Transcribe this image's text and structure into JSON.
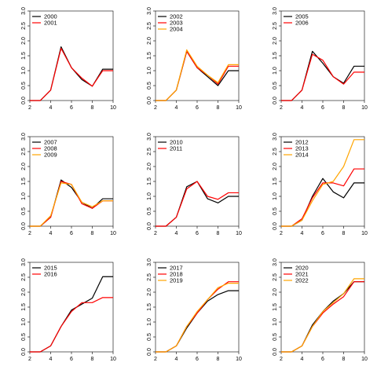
{
  "chart_data": [
    {
      "type": "line",
      "x": [
        2,
        3,
        4,
        5,
        6,
        7,
        8,
        9,
        10
      ],
      "xlim": [
        2,
        10
      ],
      "ylim": [
        0,
        3
      ],
      "xticks": [
        2,
        4,
        6,
        8,
        10
      ],
      "yticks": [
        "0.0",
        "0.5",
        "1.0",
        "1.5",
        "2.0",
        "2.5",
        "3.0"
      ],
      "series": [
        {
          "name": "2000",
          "color": "#000000",
          "values": [
            0,
            0,
            0.35,
            1.8,
            1.1,
            0.7,
            0.48,
            1.05,
            1.05
          ]
        },
        {
          "name": "2001",
          "color": "#ff0000",
          "values": [
            0,
            0,
            0.35,
            1.75,
            1.1,
            0.75,
            0.48,
            1.0,
            1.0
          ]
        }
      ]
    },
    {
      "type": "line",
      "x": [
        2,
        3,
        4,
        5,
        6,
        7,
        8,
        9,
        10
      ],
      "xlim": [
        2,
        10
      ],
      "ylim": [
        0,
        3
      ],
      "xticks": [
        2,
        4,
        6,
        8,
        10
      ],
      "yticks": [
        "0.0",
        "0.5",
        "1.0",
        "1.5",
        "2.0",
        "2.5",
        "3.0"
      ],
      "series": [
        {
          "name": "2002",
          "color": "#000000",
          "values": [
            0,
            0,
            0.35,
            1.65,
            1.1,
            0.8,
            0.5,
            1.0,
            1.0
          ]
        },
        {
          "name": "2003",
          "color": "#ff0000",
          "values": [
            0,
            0,
            0.35,
            1.65,
            1.1,
            0.85,
            0.55,
            1.15,
            1.15
          ]
        },
        {
          "name": "2004",
          "color": "#ffa500",
          "values": [
            0,
            0,
            0.35,
            1.7,
            1.15,
            0.85,
            0.6,
            1.2,
            1.2
          ]
        }
      ]
    },
    {
      "type": "line",
      "x": [
        2,
        3,
        4,
        5,
        6,
        7,
        8,
        9,
        10
      ],
      "xlim": [
        2,
        10
      ],
      "ylim": [
        0,
        3
      ],
      "xticks": [
        2,
        4,
        6,
        8,
        10
      ],
      "yticks": [
        "0.0",
        "0.5",
        "1.0",
        "1.5",
        "2.0",
        "2.5",
        "3.0"
      ],
      "series": [
        {
          "name": "2005",
          "color": "#000000",
          "values": [
            0,
            0,
            0.35,
            1.65,
            1.25,
            0.8,
            0.58,
            1.15,
            1.15
          ]
        },
        {
          "name": "2006",
          "color": "#ff0000",
          "values": [
            0,
            0,
            0.35,
            1.55,
            1.35,
            0.8,
            0.55,
            0.95,
            0.95
          ]
        }
      ]
    },
    {
      "type": "line",
      "x": [
        2,
        3,
        4,
        5,
        6,
        7,
        8,
        9,
        10
      ],
      "xlim": [
        2,
        10
      ],
      "ylim": [
        0,
        3
      ],
      "xticks": [
        2,
        4,
        6,
        8,
        10
      ],
      "yticks": [
        "0.0",
        "0.5",
        "1.0",
        "1.5",
        "2.0",
        "2.5",
        "3.0"
      ],
      "series": [
        {
          "name": "2007",
          "color": "#000000",
          "values": [
            0,
            0,
            0.3,
            1.55,
            1.3,
            0.8,
            0.6,
            0.92,
            0.92
          ]
        },
        {
          "name": "2008",
          "color": "#ff0000",
          "values": [
            0,
            0,
            0.3,
            1.5,
            1.4,
            0.75,
            0.6,
            0.85,
            0.85
          ]
        },
        {
          "name": "2009",
          "color": "#ffa500",
          "values": [
            0,
            0,
            0.35,
            1.45,
            1.4,
            0.8,
            0.65,
            0.85,
            0.85
          ]
        }
      ]
    },
    {
      "type": "line",
      "x": [
        2,
        3,
        4,
        5,
        6,
        7,
        8,
        9,
        10
      ],
      "xlim": [
        2,
        10
      ],
      "ylim": [
        0,
        3
      ],
      "xticks": [
        2,
        4,
        6,
        8,
        10
      ],
      "yticks": [
        "0.0",
        "0.5",
        "1.0",
        "1.5",
        "2.0",
        "2.5",
        "3.0"
      ],
      "series": [
        {
          "name": "2010",
          "color": "#000000",
          "values": [
            0,
            0,
            0.3,
            1.32,
            1.5,
            0.92,
            0.78,
            1.0,
            1.0
          ]
        },
        {
          "name": "2011",
          "color": "#ff0000",
          "values": [
            0,
            0,
            0.3,
            1.25,
            1.5,
            1.0,
            0.9,
            1.12,
            1.12
          ]
        }
      ]
    },
    {
      "type": "line",
      "x": [
        2,
        3,
        4,
        5,
        6,
        7,
        8,
        9,
        10
      ],
      "xlim": [
        2,
        10
      ],
      "ylim": [
        0,
        3
      ],
      "xticks": [
        2,
        4,
        6,
        8,
        10
      ],
      "yticks": [
        "0.0",
        "0.5",
        "1.0",
        "1.5",
        "2.0",
        "2.5",
        "3.0"
      ],
      "series": [
        {
          "name": "2012",
          "color": "#000000",
          "values": [
            0,
            0,
            0.2,
            1.0,
            1.6,
            1.15,
            0.95,
            1.45,
            1.45
          ]
        },
        {
          "name": "2013",
          "color": "#ff0000",
          "values": [
            0,
            0,
            0.25,
            0.95,
            1.45,
            1.45,
            1.35,
            1.92,
            1.92
          ]
        },
        {
          "name": "2014",
          "color": "#ffa500",
          "values": [
            0,
            0,
            0.2,
            0.85,
            1.4,
            1.5,
            2.0,
            2.9,
            2.9
          ]
        }
      ]
    },
    {
      "type": "line",
      "x": [
        2,
        3,
        4,
        5,
        6,
        7,
        8,
        9,
        10
      ],
      "xlim": [
        2,
        10
      ],
      "ylim": [
        0,
        3
      ],
      "xticks": [
        2,
        4,
        6,
        8,
        10
      ],
      "yticks": [
        "0.0",
        "0.5",
        "1.0",
        "1.5",
        "2.0",
        "2.5",
        "3.0"
      ],
      "series": [
        {
          "name": "2015",
          "color": "#000000",
          "values": [
            0,
            0,
            0.2,
            0.85,
            1.4,
            1.6,
            1.8,
            2.52,
            2.52
          ]
        },
        {
          "name": "2016",
          "color": "#ff0000",
          "values": [
            0,
            0,
            0.2,
            0.85,
            1.35,
            1.65,
            1.65,
            1.82,
            1.82
          ]
        }
      ]
    },
    {
      "type": "line",
      "x": [
        2,
        3,
        4,
        5,
        6,
        7,
        8,
        9,
        10
      ],
      "xlim": [
        2,
        10
      ],
      "ylim": [
        0,
        3
      ],
      "xticks": [
        2,
        4,
        6,
        8,
        10
      ],
      "yticks": [
        "0.0",
        "0.5",
        "1.0",
        "1.5",
        "2.0",
        "2.5",
        "3.0"
      ],
      "series": [
        {
          "name": "2017",
          "color": "#000000",
          "values": [
            0,
            0,
            0.2,
            0.8,
            1.3,
            1.7,
            1.92,
            2.05,
            2.05
          ]
        },
        {
          "name": "2018",
          "color": "#ff0000",
          "values": [
            0,
            0,
            0.2,
            0.85,
            1.3,
            1.75,
            2.1,
            2.35,
            2.35
          ]
        },
        {
          "name": "2019",
          "color": "#ffa500",
          "values": [
            0,
            0,
            0.2,
            0.85,
            1.35,
            1.75,
            2.15,
            2.3,
            2.3
          ]
        }
      ]
    },
    {
      "type": "line",
      "x": [
        2,
        3,
        4,
        5,
        6,
        7,
        8,
        9,
        10
      ],
      "xlim": [
        2,
        10
      ],
      "ylim": [
        0,
        3
      ],
      "xticks": [
        2,
        4,
        6,
        8,
        10
      ],
      "yticks": [
        "0.0",
        "0.5",
        "1.0",
        "1.5",
        "2.0",
        "2.5",
        "3.0"
      ],
      "series": [
        {
          "name": "2020",
          "color": "#000000",
          "values": [
            0,
            0,
            0.2,
            0.9,
            1.35,
            1.7,
            1.95,
            2.35,
            2.35
          ]
        },
        {
          "name": "2021",
          "color": "#ff0000",
          "values": [
            0,
            0,
            0.2,
            0.85,
            1.3,
            1.6,
            1.85,
            2.35,
            2.35
          ]
        },
        {
          "name": "2022",
          "color": "#ffa500",
          "values": [
            0,
            0,
            0.2,
            0.85,
            1.35,
            1.65,
            1.95,
            2.45,
            2.45
          ]
        }
      ]
    }
  ]
}
